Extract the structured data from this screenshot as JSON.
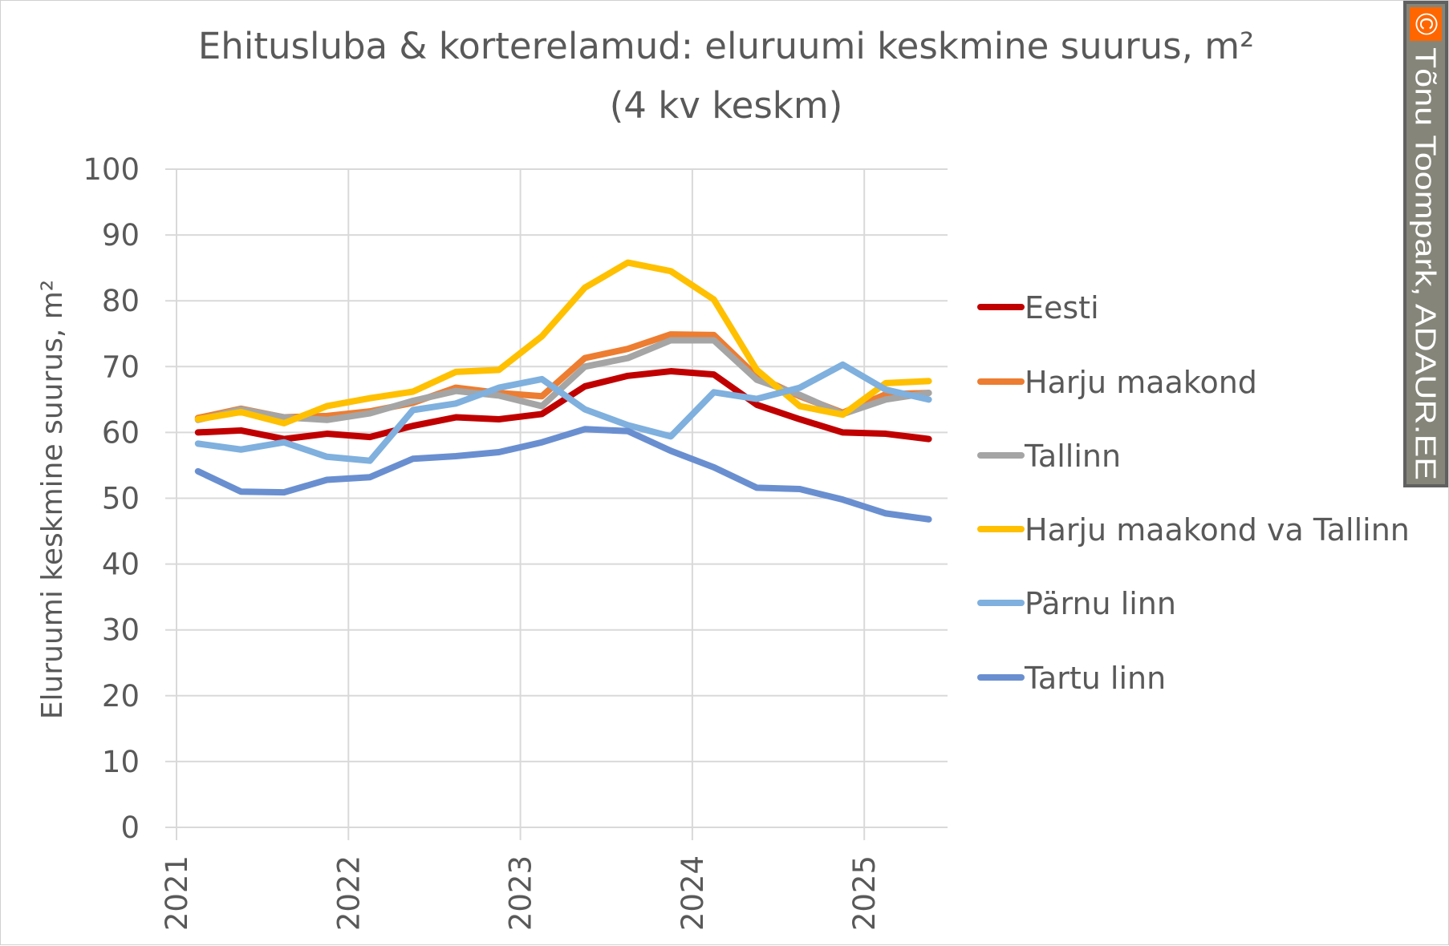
{
  "chart_data": {
    "type": "line",
    "title": "Ehitusluba & korterelamud: eluruumi keskmine suurus, m²",
    "subtitle": "(4 kv keskm)",
    "xlabel": "",
    "ylabel": "Eluruumi keskmine suurus, m²",
    "ylim": [
      0,
      100
    ],
    "yticks": [
      0,
      10,
      20,
      30,
      40,
      50,
      60,
      70,
      80,
      90,
      100
    ],
    "xticks": [
      "2021",
      "2022",
      "2023",
      "2024",
      "2025"
    ],
    "grid": true,
    "legend_position": "right",
    "x": [
      "2021Q1",
      "2021Q2",
      "2021Q3",
      "2021Q4",
      "2022Q1",
      "2022Q2",
      "2022Q3",
      "2022Q4",
      "2023Q1",
      "2023Q2",
      "2023Q3",
      "2023Q4",
      "2024Q1",
      "2024Q2",
      "2024Q3",
      "2024Q4",
      "2025Q1",
      "2025Q2"
    ],
    "series": [
      {
        "name": "Eesti",
        "color": "#C00000",
        "values": [
          60,
          60.3,
          59,
          59.8,
          59.3,
          61,
          62.3,
          62,
          62.8,
          67,
          68.6,
          69.3,
          68.8,
          64.2,
          62,
          60,
          59.8,
          59
        ]
      },
      {
        "name": "Harju maakond",
        "color": "#ED7D31",
        "values": [
          62.2,
          63.6,
          62.3,
          62.5,
          63.2,
          64.5,
          66.8,
          66,
          65.5,
          71.3,
          72.7,
          74.9,
          74.8,
          68.5,
          65.5,
          63,
          65.8,
          66
        ]
      },
      {
        "name": "Tallinn",
        "color": "#A5A5A5",
        "values": [
          61.9,
          63.5,
          62.3,
          61.9,
          62.9,
          64.8,
          66.3,
          65.6,
          64,
          70,
          71.3,
          74,
          74,
          68,
          65.7,
          62.8,
          65,
          66
        ]
      },
      {
        "name": "Harju maakond va Tallinn",
        "color": "#FFC000",
        "values": [
          62,
          63.1,
          61.4,
          64,
          65.2,
          66.2,
          69.2,
          69.5,
          74.6,
          82,
          85.8,
          84.5,
          80.2,
          69.5,
          64,
          62.7,
          67.5,
          67.8
        ]
      },
      {
        "name": "Pärnu linn",
        "color": "#7FB0DE",
        "values": [
          58.3,
          57.4,
          58.5,
          56.3,
          55.7,
          63.4,
          64.4,
          66.8,
          68.1,
          63.5,
          61.1,
          59.4,
          66.1,
          65.1,
          66.8,
          70.3,
          66.5,
          65
        ]
      },
      {
        "name": "Tartu linn",
        "color": "#6A8FD0",
        "values": [
          54.1,
          51,
          50.9,
          52.8,
          53.2,
          56,
          56.4,
          57,
          58.5,
          60.5,
          60.2,
          57.2,
          54.7,
          51.6,
          51.4,
          49.8,
          47.7,
          46.8
        ]
      }
    ]
  },
  "watermark": {
    "text": "Tõnu Toompark, ADAUR.EE",
    "symbol": "©"
  }
}
